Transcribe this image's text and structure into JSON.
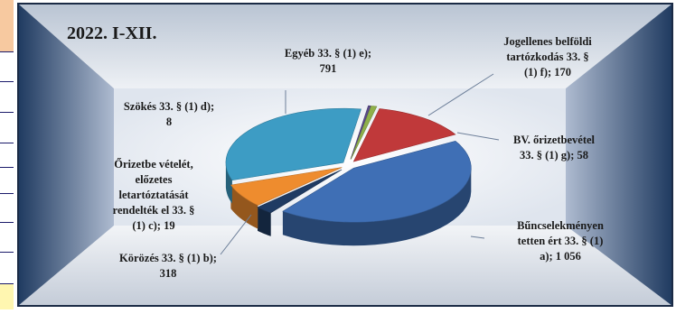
{
  "chart_data": {
    "type": "pie",
    "title": "2022. I-XII.",
    "slices": [
      {
        "label": [
          "Bűncselekményen",
          "tetten ért 33. § (1)",
          "a); 1 056"
        ],
        "value": 1056,
        "color": "#3f6fb5"
      },
      {
        "label": [
          "BV. őrizetbevétel",
          "33. § (1) g); 58"
        ],
        "value": 58,
        "color": "#1f3b63"
      },
      {
        "label": [
          "Jogellenes belföldi",
          "tartózkodás 33. §",
          "(1) f); 170"
        ],
        "value": 170,
        "color": "#ee8c2e"
      },
      {
        "label": [
          "Egyéb 33. § (1) e);",
          "791"
        ],
        "value": 791,
        "color": "#3d9cc4"
      },
      {
        "label": [
          "Szökés 33. § (1) d);",
          "8"
        ],
        "value": 8,
        "color": "#5a4a8a"
      },
      {
        "label": [
          "Őrizetbe vételét,",
          "előzetes",
          "letartóztatását",
          "rendelték el 33. §",
          "(1) c); 19"
        ],
        "value": 19,
        "color": "#8fb04a"
      },
      {
        "label": [
          "Körözés 33. § (1) b);",
          "318"
        ],
        "value": 318,
        "color": "#c0393a"
      }
    ]
  }
}
